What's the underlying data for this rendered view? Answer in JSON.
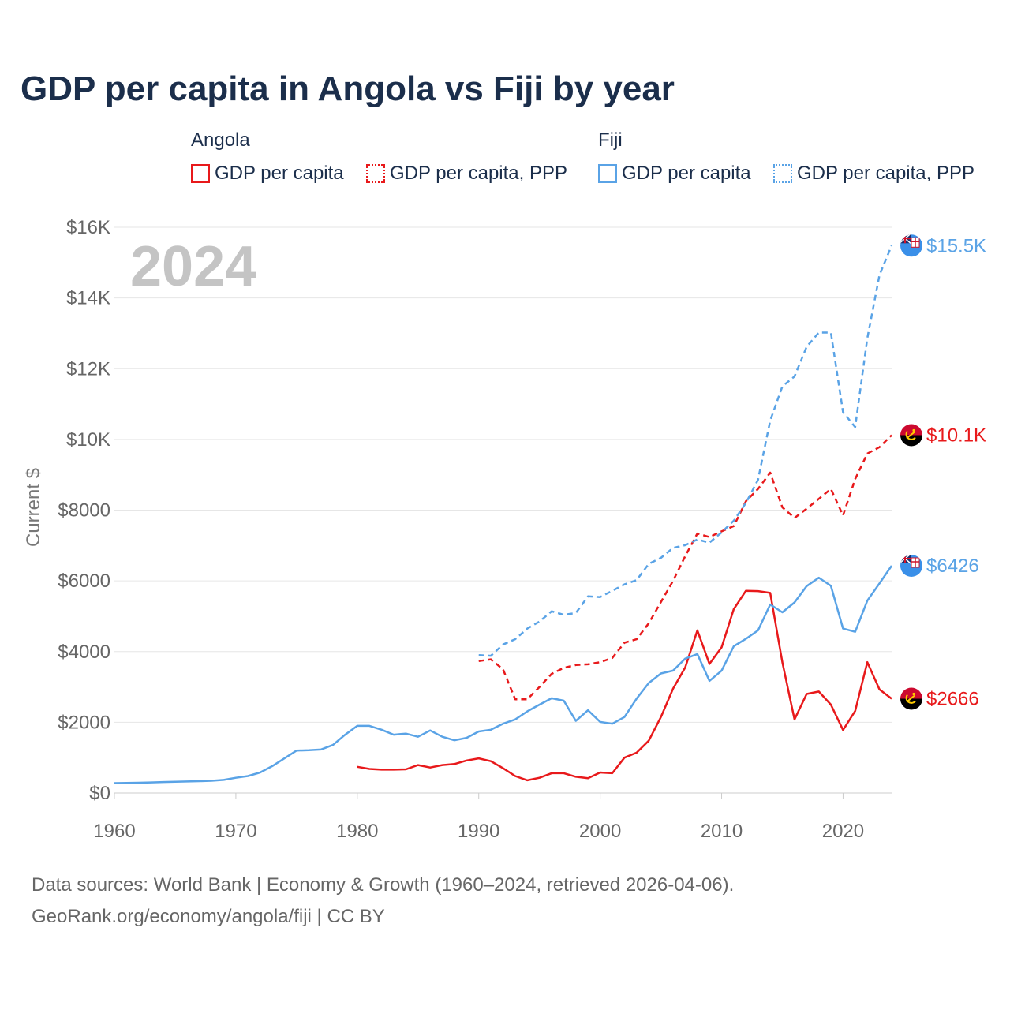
{
  "title": "GDP per capita in Angola vs Fiji by year",
  "legend": {
    "groups": [
      {
        "name": "Angola",
        "items": [
          {
            "label": "GDP per capita",
            "color": "#e8191b",
            "style": "solid"
          },
          {
            "label": "GDP per capita, PPP",
            "color": "#e8191b",
            "style": "dotted"
          }
        ]
      },
      {
        "name": "Fiji",
        "items": [
          {
            "label": "GDP per capita",
            "color": "#5aa3e6",
            "style": "solid"
          },
          {
            "label": "GDP per capita, PPP",
            "color": "#5aa3e6",
            "style": "dotted"
          }
        ]
      }
    ]
  },
  "footer": {
    "line1": "Data sources: World Bank | Economy & Growth (1960–2024, retrieved 2026-04-06).",
    "line2": "GeoRank.org/economy/angola/fiji | CC BY"
  },
  "chart_data": {
    "type": "line",
    "title": "GDP per capita in Angola vs Fiji by year",
    "year_watermark": "2024",
    "xlabel": "",
    "ylabel": "Current $",
    "xlim": [
      1960,
      2024
    ],
    "ylim": [
      0,
      16000
    ],
    "x_ticks": [
      1960,
      1970,
      1980,
      1990,
      2000,
      2010,
      2020
    ],
    "x_tick_labels": [
      "1960",
      "1970",
      "1980",
      "1990",
      "2000",
      "2010",
      "2020"
    ],
    "y_ticks": [
      0,
      2000,
      4000,
      6000,
      8000,
      10000,
      12000,
      14000,
      16000
    ],
    "y_tick_labels": [
      "$0",
      "$2000",
      "$4000",
      "$6000",
      "$8000",
      "$10K",
      "$12K",
      "$14K",
      "$16K"
    ],
    "grid": true,
    "series": [
      {
        "name": "Angola GDP per capita",
        "country": "Angola",
        "color": "#e8191b",
        "dash": "solid",
        "end_label": "$2666",
        "x": [
          1980,
          1981,
          1982,
          1983,
          1984,
          1985,
          1986,
          1987,
          1988,
          1989,
          1990,
          1991,
          1992,
          1993,
          1994,
          1995,
          1996,
          1997,
          1998,
          1999,
          2000,
          2001,
          2002,
          2003,
          2004,
          2005,
          2006,
          2007,
          2008,
          2009,
          2010,
          2011,
          2012,
          2013,
          2014,
          2015,
          2016,
          2017,
          2018,
          2019,
          2020,
          2021,
          2022,
          2023,
          2024
        ],
        "values": [
          740,
          680,
          660,
          660,
          670,
          790,
          720,
          790,
          820,
          920,
          980,
          900,
          700,
          480,
          360,
          430,
          560,
          560,
          460,
          420,
          580,
          560,
          1000,
          1140,
          1480,
          2150,
          2950,
          3550,
          4600,
          3650,
          4120,
          5200,
          5720,
          5710,
          5660,
          3700,
          2080,
          2800,
          2870,
          2500,
          1780,
          2320,
          3700,
          2930,
          2666
        ]
      },
      {
        "name": "Angola GDP per capita, PPP",
        "country": "Angola",
        "color": "#e8191b",
        "dash": "dashed",
        "end_label": "$10.1K",
        "x": [
          1990,
          1991,
          1992,
          1993,
          1994,
          1995,
          1996,
          1997,
          1998,
          1999,
          2000,
          2001,
          2002,
          2003,
          2004,
          2005,
          2006,
          2007,
          2008,
          2009,
          2010,
          2011,
          2012,
          2013,
          2014,
          2015,
          2016,
          2017,
          2018,
          2019,
          2020,
          2021,
          2022,
          2023,
          2024
        ],
        "values": [
          3730,
          3780,
          3500,
          2650,
          2650,
          3000,
          3370,
          3540,
          3620,
          3640,
          3700,
          3820,
          4250,
          4350,
          4800,
          5400,
          6000,
          6700,
          7340,
          7240,
          7400,
          7550,
          8250,
          8600,
          9060,
          8080,
          7780,
          8040,
          8320,
          8600,
          7850,
          8880,
          9600,
          9780,
          10120
        ]
      },
      {
        "name": "Fiji GDP per capita",
        "country": "Fiji",
        "color": "#5aa3e6",
        "dash": "solid",
        "end_label": "$6426",
        "x": [
          1960,
          1961,
          1962,
          1963,
          1964,
          1965,
          1966,
          1967,
          1968,
          1969,
          1970,
          1971,
          1972,
          1973,
          1974,
          1975,
          1976,
          1977,
          1978,
          1979,
          1980,
          1981,
          1982,
          1983,
          1984,
          1985,
          1986,
          1987,
          1988,
          1989,
          1990,
          1991,
          1992,
          1993,
          1994,
          1995,
          1996,
          1997,
          1998,
          1999,
          2000,
          2001,
          2002,
          2003,
          2004,
          2005,
          2006,
          2007,
          2008,
          2009,
          2010,
          2011,
          2012,
          2013,
          2014,
          2015,
          2016,
          2017,
          2018,
          2019,
          2020,
          2021,
          2022,
          2023,
          2024
        ],
        "values": [
          280,
          285,
          290,
          300,
          310,
          320,
          325,
          335,
          345,
          370,
          430,
          480,
          580,
          760,
          980,
          1200,
          1210,
          1230,
          1360,
          1650,
          1900,
          1900,
          1790,
          1650,
          1680,
          1590,
          1770,
          1590,
          1490,
          1560,
          1740,
          1790,
          1960,
          2080,
          2310,
          2500,
          2680,
          2610,
          2040,
          2340,
          2010,
          1960,
          2150,
          2670,
          3110,
          3380,
          3460,
          3800,
          3930,
          3170,
          3460,
          4150,
          4360,
          4600,
          5330,
          5110,
          5390,
          5850,
          6090,
          5860,
          4650,
          4560,
          5440,
          5930,
          6426
        ]
      },
      {
        "name": "Fiji GDP per capita, PPP",
        "country": "Fiji",
        "color": "#5aa3e6",
        "dash": "dashed",
        "end_label": "$15.5K",
        "x": [
          1990,
          1991,
          1992,
          1993,
          1994,
          1995,
          1996,
          1997,
          1998,
          1999,
          2000,
          2001,
          2002,
          2003,
          2004,
          2005,
          2006,
          2007,
          2008,
          2009,
          2010,
          2011,
          2012,
          2013,
          2014,
          2015,
          2016,
          2017,
          2018,
          2019,
          2020,
          2021,
          2022,
          2023,
          2024
        ],
        "values": [
          3900,
          3880,
          4200,
          4350,
          4650,
          4850,
          5140,
          5040,
          5090,
          5560,
          5540,
          5720,
          5900,
          6020,
          6480,
          6650,
          6930,
          7010,
          7170,
          7080,
          7370,
          7700,
          8200,
          8860,
          10530,
          11500,
          11780,
          12620,
          13020,
          13020,
          10770,
          10350,
          12860,
          14650,
          15480
        ]
      }
    ]
  }
}
